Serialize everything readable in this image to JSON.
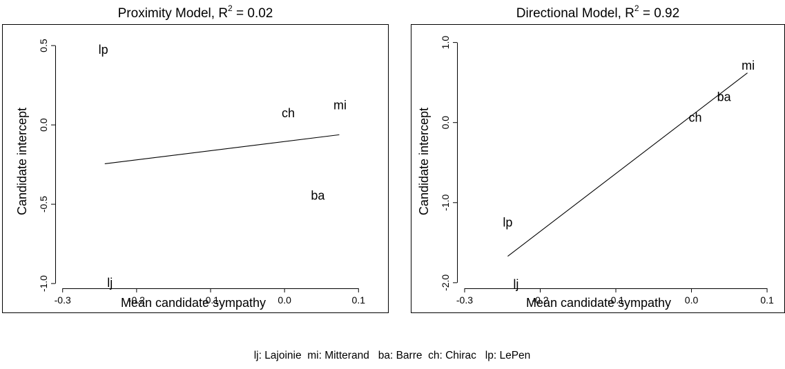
{
  "chart_data": [
    {
      "type": "scatter",
      "title": "Proximity Model, R",
      "title_sup": "2",
      "title_tail": " = 0.02",
      "xlabel": "Mean candidate sympathy",
      "ylabel": "Candidate intercept",
      "xlim": [
        -0.31,
        0.11
      ],
      "ylim": [
        -1.03,
        0.57
      ],
      "x_ticks": [
        -0.3,
        -0.2,
        -0.1,
        0.0,
        0.1
      ],
      "x_tick_labels": [
        "-0.3",
        "-0.2",
        "-0.1",
        "0.0",
        "0.1"
      ],
      "y_ticks": [
        -1.0,
        -0.5,
        0.0,
        0.5
      ],
      "y_tick_labels": [
        "-1.0",
        "-0.5",
        "0.0",
        "0.5"
      ],
      "points": [
        {
          "label": "lp",
          "x": -0.245,
          "y": 0.47
        },
        {
          "label": "ch",
          "x": 0.005,
          "y": 0.07
        },
        {
          "label": "mi",
          "x": 0.075,
          "y": 0.12
        },
        {
          "label": "ba",
          "x": 0.045,
          "y": -0.45
        },
        {
          "label": "lj",
          "x": -0.236,
          "y": -1.0
        }
      ],
      "fit_line": [
        [
          -0.243,
          -0.245
        ],
        [
          0.074,
          -0.062
        ]
      ],
      "grid": false
    },
    {
      "type": "scatter",
      "title": "Directional Model, R",
      "title_sup": "2",
      "title_tail": " = 0.92",
      "xlabel": "Mean candidate sympathy",
      "ylabel": "Candidate intercept",
      "xlim": [
        -0.31,
        0.11
      ],
      "ylim": [
        -2.07,
        1.1
      ],
      "x_ticks": [
        -0.3,
        -0.2,
        -0.1,
        0.0,
        0.1
      ],
      "x_tick_labels": [
        "-0.3",
        "-0.2",
        "-0.1",
        "0.0",
        "0.1"
      ],
      "y_ticks": [
        -2.0,
        -1.0,
        0.0,
        1.0
      ],
      "y_tick_labels": [
        "-2.0",
        "-1.0",
        "0.0",
        "1.0"
      ],
      "points": [
        {
          "label": "mi",
          "x": 0.075,
          "y": 0.7
        },
        {
          "label": "ba",
          "x": 0.043,
          "y": 0.31
        },
        {
          "label": "ch",
          "x": 0.005,
          "y": 0.05
        },
        {
          "label": "lp",
          "x": -0.243,
          "y": -1.26
        },
        {
          "label": "lj",
          "x": -0.232,
          "y": -2.03
        }
      ],
      "fit_line": [
        [
          -0.243,
          -1.67
        ],
        [
          0.074,
          0.62
        ]
      ],
      "grid": false
    }
  ],
  "footnote": "lj: Lajoinie  mi: Mitterand   ba: Barre  ch: Chirac   lp: LePen"
}
